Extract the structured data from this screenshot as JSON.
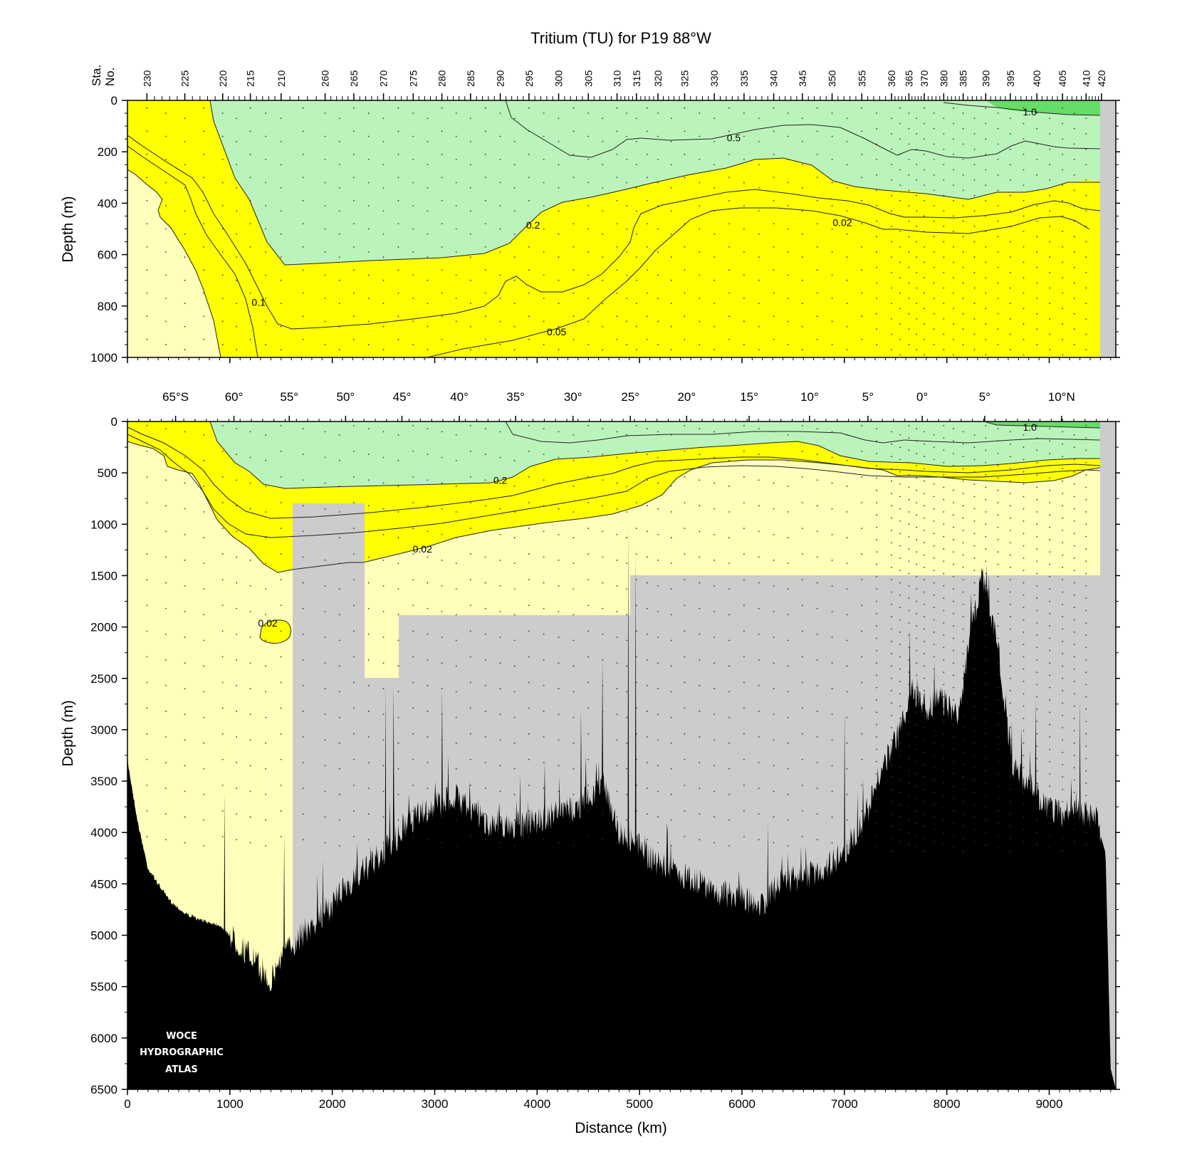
{
  "chart_data": {
    "type": "contour",
    "title": "Tritium (TU) for P19 88°W",
    "colors": {
      "lt_0_02": "#ffffbb",
      "0_02_to_0_2": "#ffff00",
      "0_2_to_1_0": "#bbf4bb",
      "gt_1_0": "#66dd66",
      "no_data": "#cccccc",
      "bathymetry": "#000000"
    },
    "x_axis": {
      "label": "Distance (km)",
      "range": [
        0,
        9650
      ],
      "ticks": [
        0,
        1000,
        2000,
        3000,
        4000,
        5000,
        6000,
        7000,
        8000,
        9000
      ],
      "tick_labels": [
        "0",
        "1000",
        "2000",
        "3000",
        "4000",
        "5000",
        "6000",
        "7000",
        "8000",
        "9000"
      ]
    },
    "station_axis": {
      "label_line1": "Sta.",
      "label_line2": "No.",
      "ticks": [
        {
          "label": "230",
          "km": 190
        },
        {
          "label": "225",
          "km": 560
        },
        {
          "label": "220",
          "km": 930
        },
        {
          "label": "215",
          "km": 1200
        },
        {
          "label": "210",
          "km": 1500
        },
        {
          "label": "260",
          "km": 1930
        },
        {
          "label": "265",
          "km": 2210
        },
        {
          "label": "270",
          "km": 2500
        },
        {
          "label": "275",
          "km": 2790
        },
        {
          "label": "280",
          "km": 3070
        },
        {
          "label": "285",
          "km": 3350
        },
        {
          "label": "290",
          "km": 3640
        },
        {
          "label": "295",
          "km": 3920
        },
        {
          "label": "300",
          "km": 4210
        },
        {
          "label": "305",
          "km": 4500
        },
        {
          "label": "310",
          "km": 4780
        },
        {
          "label": "315",
          "km": 4970
        },
        {
          "label": "320",
          "km": 5180
        },
        {
          "label": "325",
          "km": 5440
        },
        {
          "label": "330",
          "km": 5730
        },
        {
          "label": "335",
          "km": 6020
        },
        {
          "label": "340",
          "km": 6310
        },
        {
          "label": "345",
          "km": 6590
        },
        {
          "label": "350",
          "km": 6880
        },
        {
          "label": "355",
          "km": 7170
        },
        {
          "label": "360",
          "km": 7460
        },
        {
          "label": "365",
          "km": 7630
        },
        {
          "label": "370",
          "km": 7780
        },
        {
          "label": "380",
          "km": 7970
        },
        {
          "label": "385",
          "km": 8160
        },
        {
          "label": "390",
          "km": 8380
        },
        {
          "label": "395",
          "km": 8620
        },
        {
          "label": "400",
          "km": 8880
        },
        {
          "label": "405",
          "km": 9130
        },
        {
          "label": "410",
          "km": 9360
        },
        {
          "label": "420",
          "km": 9510
        }
      ]
    },
    "latitude_axis": {
      "ticks": [
        {
          "label": "65°S",
          "km": 470
        },
        {
          "label": "60°",
          "km": 1040
        },
        {
          "label": "55°",
          "km": 1580
        },
        {
          "label": "50°",
          "km": 2130
        },
        {
          "label": "45°",
          "km": 2680
        },
        {
          "label": "40°",
          "km": 3240
        },
        {
          "label": "35°",
          "km": 3790
        },
        {
          "label": "30°",
          "km": 4350
        },
        {
          "label": "25°",
          "km": 4910
        },
        {
          "label": "20°",
          "km": 5460
        },
        {
          "label": "15°",
          "km": 6070
        },
        {
          "label": "10°",
          "km": 6660
        },
        {
          "label": "5°",
          "km": 7230
        },
        {
          "label": "0°",
          "km": 7760
        },
        {
          "label": "5°",
          "km": 8370
        },
        {
          "label": "10°N",
          "km": 9120
        }
      ]
    },
    "panels": [
      {
        "name": "upper",
        "ylabel": "Depth (m)",
        "ylim": [
          0,
          1000
        ],
        "yticks": [
          0,
          200,
          400,
          600,
          800,
          1000
        ],
        "contour_labels": [
          {
            "text": "1.0",
            "km": 8810,
            "depth": 45
          },
          {
            "text": "0.5",
            "km": 5920,
            "depth": 145
          },
          {
            "text": "0.2",
            "km": 3960,
            "depth": 485
          },
          {
            "text": "0.1",
            "km": 1280,
            "depth": 785
          },
          {
            "text": "0.05",
            "km": 4190,
            "depth": 900
          },
          {
            "text": "0.02",
            "km": 6980,
            "depth": 475
          }
        ]
      },
      {
        "name": "lower",
        "ylabel": "Depth (m)",
        "ylim": [
          0,
          6500
        ],
        "yticks": [
          0,
          500,
          1000,
          1500,
          2000,
          2500,
          3000,
          3500,
          4000,
          4500,
          5000,
          5500,
          6000,
          6500
        ],
        "contour_labels": [
          {
            "text": "1.0",
            "km": 8810,
            "depth": 55
          },
          {
            "text": "0.2",
            "km": 3640,
            "depth": 570
          },
          {
            "text": "0.02",
            "km": 2880,
            "depth": 1240
          },
          {
            "text": "0.02",
            "km": 1370,
            "depth": 1960
          }
        ]
      }
    ]
  },
  "watermark": {
    "line1": "WOCE",
    "line2": "HYDROGRAPHIC",
    "line3": "ATLAS"
  }
}
